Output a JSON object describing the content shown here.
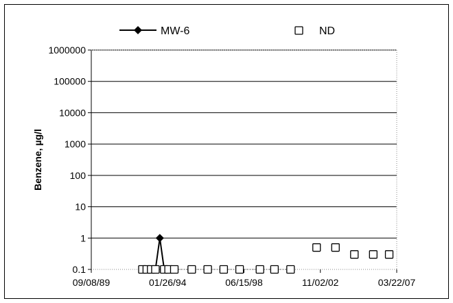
{
  "chart_data": {
    "type": "scatter",
    "title": "",
    "xlabel": "",
    "ylabel": "Benzene, µg/l",
    "y_scale": "log",
    "ylim": [
      0.1,
      1000000
    ],
    "y_ticks": [
      "0.1",
      "1",
      "10",
      "100",
      "1000",
      "10000",
      "100000",
      "1000000"
    ],
    "x_scale": "date",
    "xlim": [
      "1989-09-08",
      "2007-03-22"
    ],
    "x_ticks": [
      "09/08/89",
      "01/26/94",
      "06/15/98",
      "11/02/02",
      "03/22/07"
    ],
    "grid": "horizontal",
    "legend_position": "top",
    "series": [
      {
        "name": "MW-6",
        "marker": "diamond",
        "line": true,
        "color": "#000000",
        "points": [
          {
            "x": "1993-05-15",
            "y": 0.1
          },
          {
            "x": "1993-08-15",
            "y": 1
          },
          {
            "x": "1993-11-15",
            "y": 0.1
          }
        ]
      },
      {
        "name": "ND",
        "marker": "open-square",
        "line": false,
        "color": "#000000",
        "points": [
          {
            "x": "1992-08-15",
            "y": 0.1
          },
          {
            "x": "1992-11-15",
            "y": 0.1
          },
          {
            "x": "1993-02-15",
            "y": 0.1
          },
          {
            "x": "1993-05-15",
            "y": 0.1
          },
          {
            "x": "1993-11-15",
            "y": 0.1
          },
          {
            "x": "1994-02-15",
            "y": 0.1
          },
          {
            "x": "1994-06-15",
            "y": 0.1
          },
          {
            "x": "1995-06-15",
            "y": 0.1
          },
          {
            "x": "1996-05-15",
            "y": 0.1
          },
          {
            "x": "1997-04-15",
            "y": 0.1
          },
          {
            "x": "1998-03-15",
            "y": 0.1
          },
          {
            "x": "1999-05-15",
            "y": 0.1
          },
          {
            "x": "2000-03-15",
            "y": 0.1
          },
          {
            "x": "2001-02-15",
            "y": 0.1
          },
          {
            "x": "2002-08-15",
            "y": 0.5
          },
          {
            "x": "2003-09-15",
            "y": 0.5
          },
          {
            "x": "2004-10-15",
            "y": 0.3
          },
          {
            "x": "2005-11-15",
            "y": 0.3
          },
          {
            "x": "2006-10-15",
            "y": 0.3
          }
        ]
      }
    ]
  }
}
